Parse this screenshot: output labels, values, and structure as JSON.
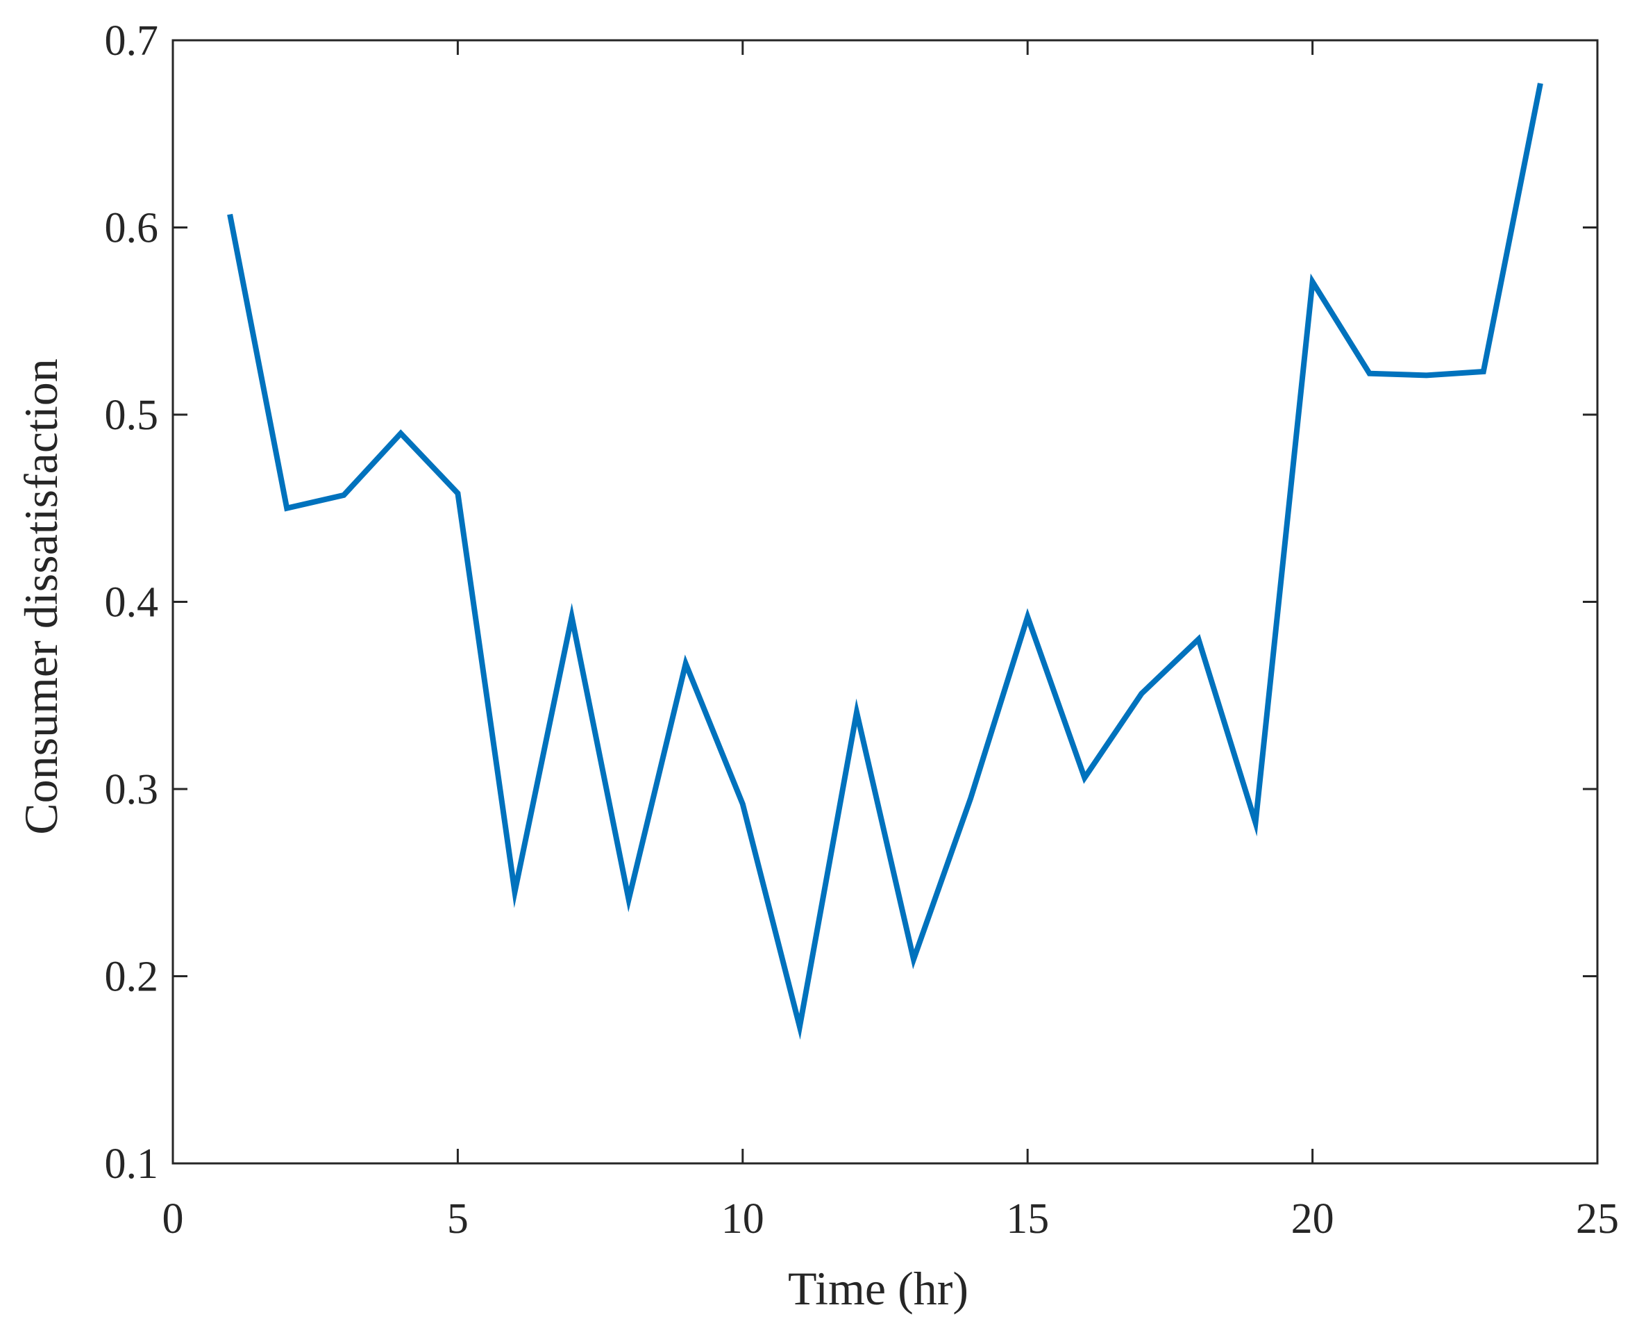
{
  "chart_data": {
    "type": "line",
    "title": "",
    "xlabel": "Time (hr)",
    "ylabel": "Consumer dissatisfaction",
    "xlim": [
      0,
      25
    ],
    "ylim": [
      0.1,
      0.7
    ],
    "xticks": [
      0,
      5,
      10,
      15,
      20,
      25
    ],
    "xtick_labels": [
      "0",
      "5",
      "10",
      "15",
      "20",
      "25"
    ],
    "yticks": [
      0.1,
      0.2,
      0.3,
      0.4,
      0.5,
      0.6,
      0.7
    ],
    "ytick_labels": [
      "0.1",
      "0.2",
      "0.3",
      "0.4",
      "0.5",
      "0.6",
      "0.7"
    ],
    "grid": false,
    "legend": "none",
    "series": [
      {
        "color": "#0072BD",
        "x": [
          1,
          2,
          3,
          4,
          5,
          6,
          7,
          8,
          9,
          10,
          11,
          12,
          13,
          14,
          15,
          16,
          17,
          18,
          19,
          20,
          21,
          22,
          23,
          24
        ],
        "y": [
          0.607,
          0.45,
          0.457,
          0.49,
          0.458,
          0.245,
          0.392,
          0.241,
          0.367,
          0.292,
          0.173,
          0.341,
          0.209,
          0.295,
          0.392,
          0.306,
          0.351,
          0.38,
          0.282,
          0.571,
          0.522,
          0.521,
          0.523,
          0.677
        ]
      }
    ]
  }
}
